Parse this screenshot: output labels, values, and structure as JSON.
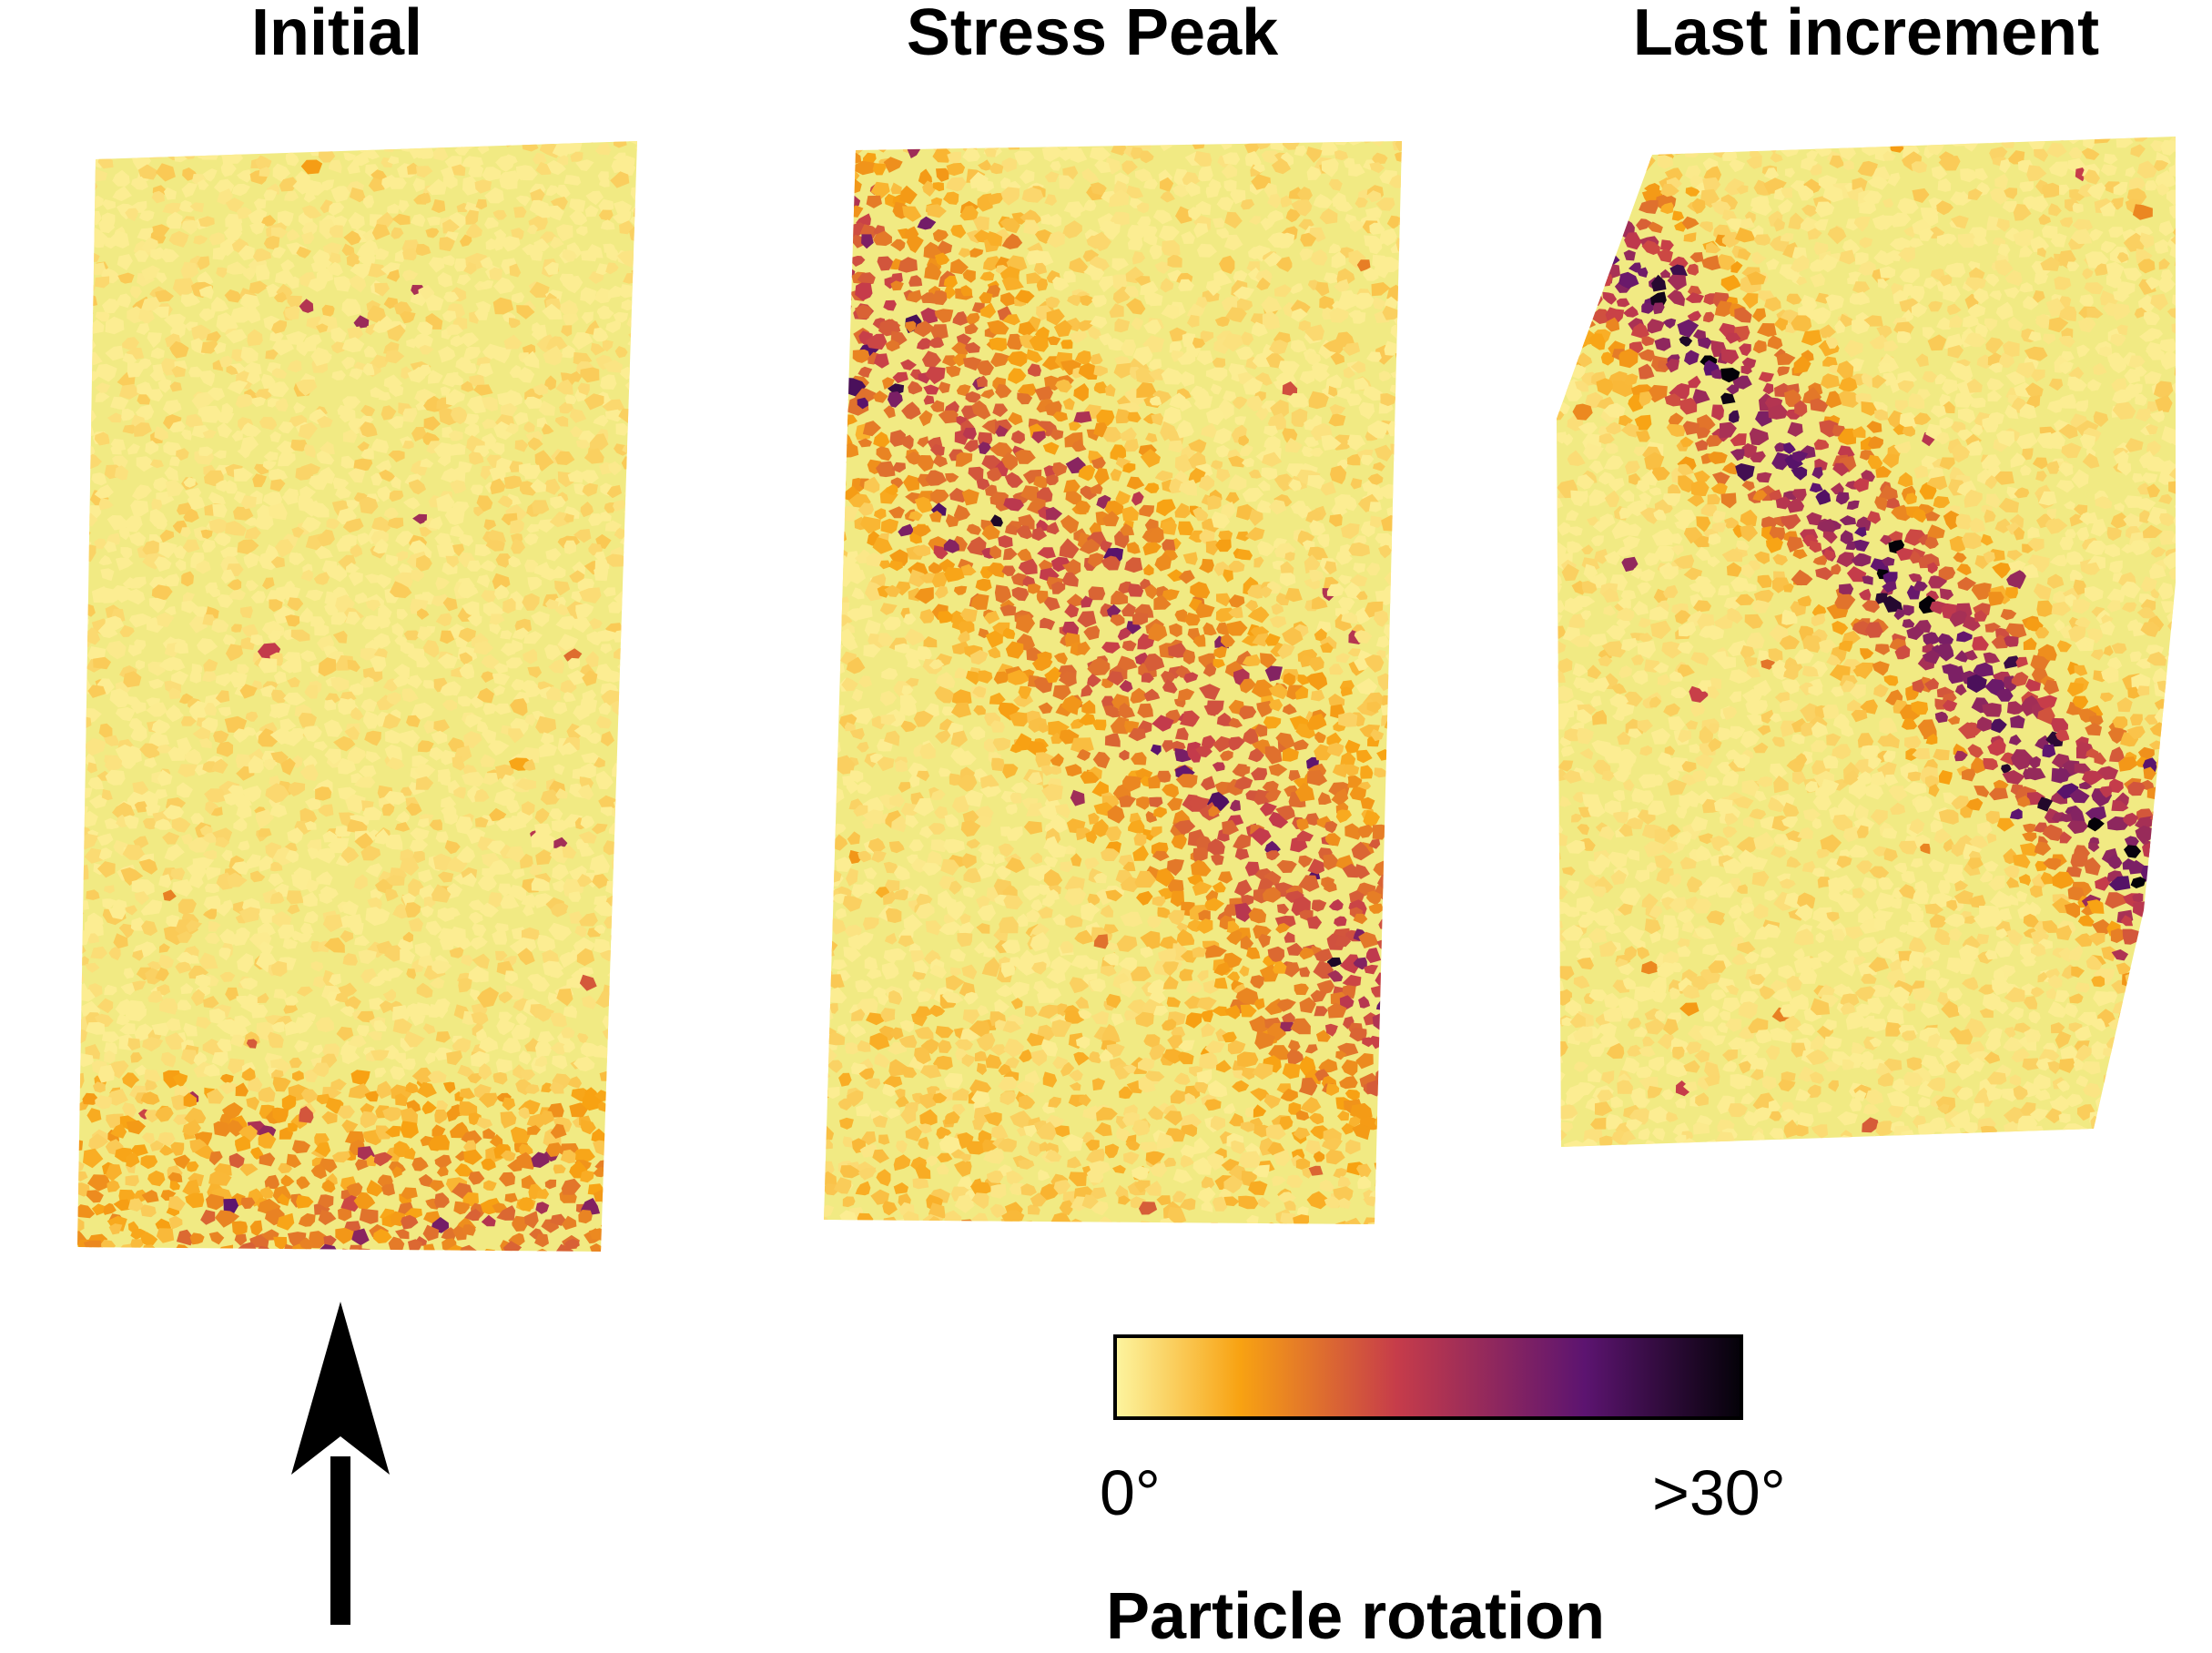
{
  "panels": [
    {
      "id": "initial",
      "title": "Initial"
    },
    {
      "id": "stress-peak",
      "title": "Stress Peak"
    },
    {
      "id": "last-increment",
      "title": "Last increment"
    }
  ],
  "colorbar": {
    "title": "Particle rotation",
    "min_label": "0°",
    "max_label": ">30°",
    "min_value_deg": 0,
    "max_value_deg": 30,
    "colormap": [
      "#fcf5a0",
      "#f8a212",
      "#c63c4a",
      "#5c1470",
      "#040208"
    ]
  },
  "arrow": {
    "direction": "up",
    "color": "#000000"
  }
}
